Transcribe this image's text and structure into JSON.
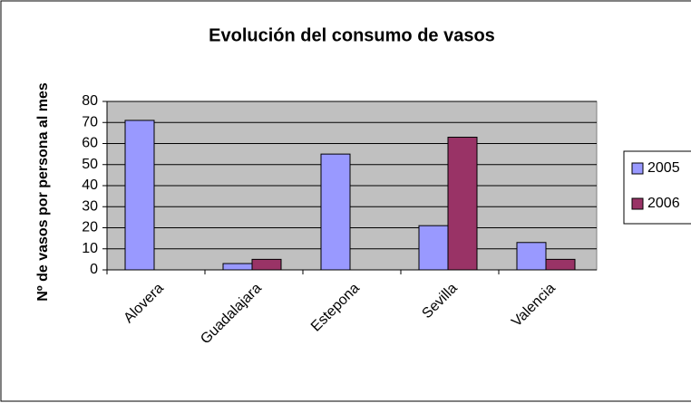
{
  "chart_data": {
    "type": "bar",
    "title": "Evolución del consumo de vasos",
    "y_label": "Nº de vasos por persona al mes",
    "categories": [
      "Alovera",
      "Guadalajara",
      "Estepona",
      "Sevilla",
      "Valencia"
    ],
    "series": [
      {
        "name": "2005",
        "color": "#9999ff",
        "values": [
          71,
          3,
          55,
          21,
          13
        ]
      },
      {
        "name": "2006",
        "color": "#993366",
        "values": [
          null,
          5,
          null,
          63,
          5
        ]
      }
    ],
    "ylim": [
      0,
      80
    ],
    "yticks": [
      0,
      10,
      20,
      30,
      40,
      50,
      60,
      70,
      80
    ],
    "grid": true,
    "legend": "right"
  }
}
